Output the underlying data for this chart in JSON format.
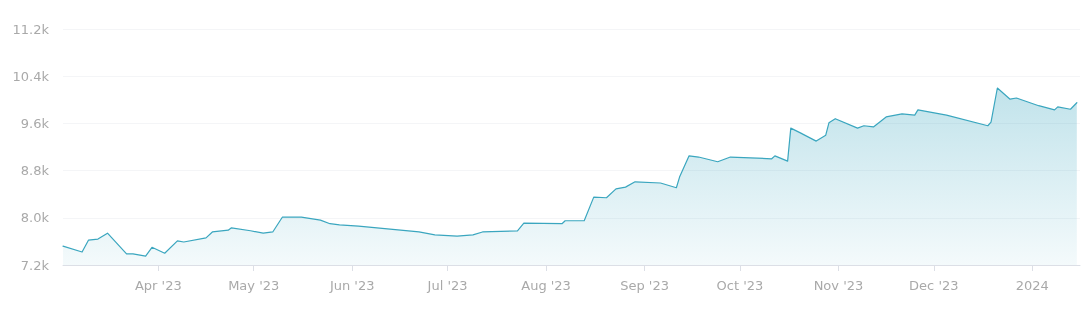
{
  "chart_data": {
    "type": "area",
    "x": [
      "2023-03-02",
      "2023-03-08",
      "2023-03-10",
      "2023-03-13",
      "2023-03-16",
      "2023-03-22",
      "2023-03-24",
      "2023-03-28",
      "2023-03-30",
      "2023-04-03",
      "2023-04-07",
      "2023-04-09",
      "2023-04-16",
      "2023-04-18",
      "2023-04-23",
      "2023-04-24",
      "2023-04-30",
      "2023-05-04",
      "2023-05-07",
      "2023-05-10",
      "2023-05-16",
      "2023-05-22",
      "2023-05-25",
      "2023-05-28",
      "2023-06-03",
      "2023-06-22",
      "2023-06-27",
      "2023-07-04",
      "2023-07-09",
      "2023-07-12",
      "2023-07-23",
      "2023-07-25",
      "2023-08-06",
      "2023-08-07",
      "2023-08-13",
      "2023-08-16",
      "2023-08-20",
      "2023-08-23",
      "2023-08-26",
      "2023-08-29",
      "2023-09-06",
      "2023-09-11",
      "2023-09-12",
      "2023-09-15",
      "2023-09-18",
      "2023-09-24",
      "2023-09-28",
      "2023-10-11",
      "2023-10-12",
      "2023-10-16",
      "2023-10-17",
      "2023-10-20",
      "2023-10-25",
      "2023-10-28",
      "2023-10-29",
      "2023-10-31",
      "2023-11-07",
      "2023-11-09",
      "2023-11-12",
      "2023-11-16",
      "2023-11-21",
      "2023-11-25",
      "2023-11-26",
      "2023-12-05",
      "2023-12-18",
      "2023-12-19",
      "2023-12-21",
      "2023-12-25",
      "2023-12-27",
      "2024-01-03",
      "2024-01-08",
      "2024-01-09",
      "2024-01-13",
      "2024-01-15"
    ],
    "series": [
      {
        "color": "#3aa6bf",
        "values": [
          7520,
          7420,
          7620,
          7640,
          7740,
          7390,
          7390,
          7350,
          7500,
          7400,
          7610,
          7590,
          7660,
          7760,
          7790,
          7830,
          7780,
          7740,
          7760,
          8010,
          8010,
          7960,
          7900,
          7880,
          7860,
          7760,
          7710,
          7690,
          7710,
          7760,
          7780,
          7910,
          7900,
          7950,
          7950,
          8350,
          8340,
          8490,
          8520,
          8610,
          8590,
          8510,
          8690,
          9050,
          9030,
          8950,
          9030,
          9000,
          9050,
          8960,
          9520,
          9440,
          9300,
          9400,
          9610,
          9680,
          9520,
          9560,
          9540,
          9710,
          9760,
          9740,
          9830,
          9740,
          9560,
          9620,
          10200,
          10010,
          10030,
          9900,
          9830,
          9880,
          9840,
          9950
        ]
      }
    ],
    "xlim": [
      "2023-03-02",
      "2024-01-16"
    ],
    "xticks": [
      {
        "value": "2023-04-01",
        "label": "Apr '23"
      },
      {
        "value": "2023-05-01",
        "label": "May '23"
      },
      {
        "value": "2023-06-01",
        "label": "Jun '23"
      },
      {
        "value": "2023-07-01",
        "label": "Jul '23"
      },
      {
        "value": "2023-08-01",
        "label": "Aug '23"
      },
      {
        "value": "2023-09-01",
        "label": "Sep '23"
      },
      {
        "value": "2023-10-01",
        "label": "Oct '23"
      },
      {
        "value": "2023-11-01",
        "label": "Nov '23"
      },
      {
        "value": "2023-12-01",
        "label": "Dec '23"
      },
      {
        "value": "2024-01-01",
        "label": "2024"
      }
    ],
    "ylim": [
      7200,
      11200
    ],
    "yticks": [
      {
        "value": 7200,
        "label": "7.2k"
      },
      {
        "value": 8000,
        "label": "8.0k"
      },
      {
        "value": 8800,
        "label": "8.8k"
      },
      {
        "value": 9600,
        "label": "9.6k"
      },
      {
        "value": 10400,
        "label": "10.4k"
      },
      {
        "value": 11200,
        "label": "11.2k"
      }
    ],
    "grid": "y",
    "marker": "none",
    "line_style": "solid"
  }
}
